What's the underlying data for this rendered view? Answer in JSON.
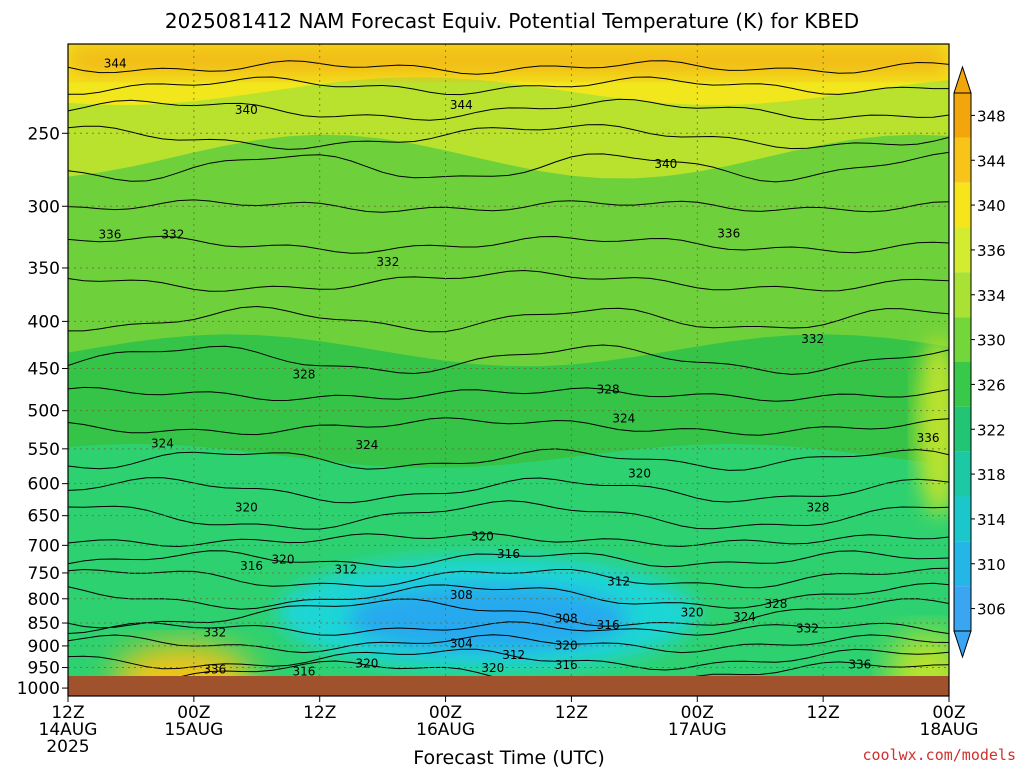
{
  "title": "2025081412 NAM Forecast Equiv. Potential Temperature (K) for KBED",
  "credit": "coolwx.com/models",
  "chart_data": {
    "type": "heatmap",
    "title": "2025081412 NAM Forecast Equiv. Potential Temperature (K) for KBED",
    "xlabel": "Forecast Time (UTC)",
    "ylabel": "",
    "x_ticks": [
      {
        "hour": 0,
        "line1": "12Z",
        "line2": "14AUG",
        "line3": "2025"
      },
      {
        "hour": 12,
        "line1": "00Z",
        "line2": "15AUG",
        "line3": ""
      },
      {
        "hour": 24,
        "line1": "12Z",
        "line2": "",
        "line3": ""
      },
      {
        "hour": 36,
        "line1": "00Z",
        "line2": "16AUG",
        "line3": ""
      },
      {
        "hour": 48,
        "line1": "12Z",
        "line2": "",
        "line3": ""
      },
      {
        "hour": 60,
        "line1": "00Z",
        "line2": "17AUG",
        "line3": ""
      },
      {
        "hour": 72,
        "line1": "12Z",
        "line2": "",
        "line3": ""
      },
      {
        "hour": 84,
        "line1": "00Z",
        "line2": "18AUG",
        "line3": ""
      }
    ],
    "x_range": [
      0,
      84
    ],
    "y_ticks": [
      250,
      300,
      350,
      400,
      450,
      500,
      550,
      600,
      650,
      700,
      750,
      800,
      850,
      900,
      950,
      1000
    ],
    "y_range": [
      200,
      1020
    ],
    "y_scale": "log",
    "grid": true,
    "colorbar": {
      "ticks": [
        348,
        344,
        340,
        336,
        334,
        330,
        326,
        322,
        318,
        314,
        310,
        306
      ],
      "colors": [
        "#f2a60c",
        "#f8c41a",
        "#f7e51c",
        "#d4ec30",
        "#a9e234",
        "#73d63b",
        "#38c84a",
        "#22c574",
        "#1cc9a4",
        "#1bc7ca",
        "#24b6e6",
        "#3aa6f2"
      ]
    },
    "colors": {
      "band_top": "#f2b418",
      "band_upper": "#f2e61c",
      "band_mid_upper": "#b8e22e",
      "band_mid": "#6ed13c",
      "band_lower_mid": "#35c447",
      "band_lower": "#2ed170",
      "band_cold": "#1dd6d6",
      "band_core": "#27a9ef",
      "band_warm_sfc": "#f2c418",
      "ground": "#a0522d"
    },
    "contour_labels": [
      {
        "text": "344",
        "hour": 4.5,
        "p": 210
      },
      {
        "text": "344",
        "hour": 37.5,
        "p": 233
      },
      {
        "text": "340",
        "hour": 17,
        "p": 236
      },
      {
        "text": "340",
        "hour": 57,
        "p": 270
      },
      {
        "text": "336",
        "hour": 4,
        "p": 322
      },
      {
        "text": "332",
        "hour": 10,
        "p": 322
      },
      {
        "text": "336",
        "hour": 63,
        "p": 321
      },
      {
        "text": "332",
        "hour": 30.5,
        "p": 345
      },
      {
        "text": "332",
        "hour": 71,
        "p": 418
      },
      {
        "text": "328",
        "hour": 22.5,
        "p": 457
      },
      {
        "text": "328",
        "hour": 51.5,
        "p": 474
      },
      {
        "text": "324",
        "hour": 9,
        "p": 543
      },
      {
        "text": "324",
        "hour": 28.5,
        "p": 545
      },
      {
        "text": "324",
        "hour": 53,
        "p": 510
      },
      {
        "text": "336",
        "hour": 82,
        "p": 535
      },
      {
        "text": "320",
        "hour": 54.5,
        "p": 585
      },
      {
        "text": "320",
        "hour": 17,
        "p": 637
      },
      {
        "text": "328",
        "hour": 71.5,
        "p": 637
      },
      {
        "text": "320",
        "hour": 39.5,
        "p": 685
      },
      {
        "text": "316",
        "hour": 42,
        "p": 715
      },
      {
        "text": "316",
        "hour": 17.5,
        "p": 737
      },
      {
        "text": "320",
        "hour": 20.5,
        "p": 725
      },
      {
        "text": "312",
        "hour": 26.5,
        "p": 744
      },
      {
        "text": "312",
        "hour": 52.5,
        "p": 766
      },
      {
        "text": "308",
        "hour": 37.5,
        "p": 792
      },
      {
        "text": "308",
        "hour": 47.5,
        "p": 840
      },
      {
        "text": "316",
        "hour": 51.5,
        "p": 854
      },
      {
        "text": "320",
        "hour": 59.5,
        "p": 828
      },
      {
        "text": "324",
        "hour": 64.5,
        "p": 837
      },
      {
        "text": "328",
        "hour": 67.5,
        "p": 811
      },
      {
        "text": "332",
        "hour": 70.5,
        "p": 862
      },
      {
        "text": "332",
        "hour": 14,
        "p": 870
      },
      {
        "text": "304",
        "hour": 37.5,
        "p": 895
      },
      {
        "text": "312",
        "hour": 42.5,
        "p": 921
      },
      {
        "text": "320",
        "hour": 47.5,
        "p": 899
      },
      {
        "text": "316",
        "hour": 47.5,
        "p": 944
      },
      {
        "text": "320",
        "hour": 40.5,
        "p": 951
      },
      {
        "text": "320",
        "hour": 28.5,
        "p": 940
      },
      {
        "text": "316",
        "hour": 22.5,
        "p": 960
      },
      {
        "text": "336",
        "hour": 14,
        "p": 955
      },
      {
        "text": "336",
        "hour": 75.5,
        "p": 943
      }
    ]
  }
}
